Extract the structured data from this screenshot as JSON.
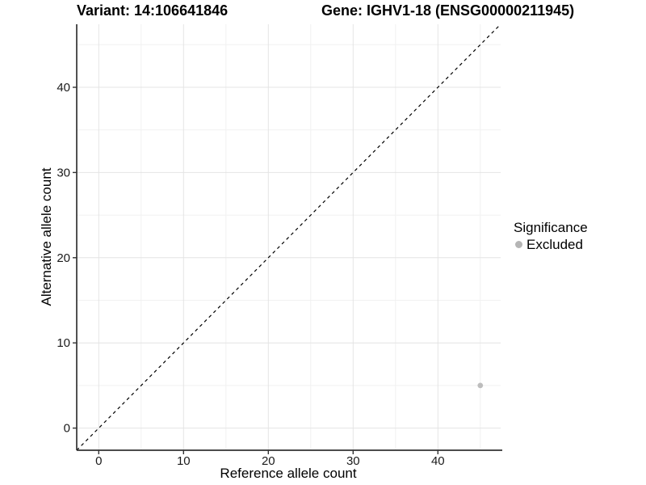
{
  "chart_data": {
    "type": "scatter",
    "title_left": "Variant: 14:106641846",
    "title_right": "Gene: IGHV1-18 (ENSG00000211945)",
    "xlabel": "Reference allele count",
    "ylabel": "Alternative allele count",
    "xlim": [
      -2.6,
      47.4
    ],
    "ylim": [
      -2.6,
      47.4
    ],
    "x_major_ticks": [
      0,
      10,
      20,
      30,
      40
    ],
    "y_major_ticks": [
      0,
      10,
      20,
      30,
      40
    ],
    "x_minor_gridlines": [
      5,
      15,
      25,
      35,
      45
    ],
    "y_minor_gridlines": [
      5,
      15,
      25,
      35,
      45
    ],
    "grid": "major-and-minor",
    "identity_line": {
      "type": "dashed",
      "slope": 1,
      "intercept": 0
    },
    "points": [
      {
        "x": 45,
        "y": 5,
        "series": "Excluded"
      }
    ],
    "legend": {
      "title": "Significance",
      "position": "right",
      "items": [
        {
          "label": "Excluded",
          "color": "#b5b5b5"
        }
      ]
    },
    "colors": {
      "background": "#ffffff",
      "axis_line": "#333333",
      "tick_mark": "#333333",
      "tick_label": "#1a1a1a",
      "grid_major": "#e4e4e4",
      "grid_minor": "#f1f1f1",
      "identity_line": "#000000",
      "point": "#bdbdbd"
    }
  }
}
